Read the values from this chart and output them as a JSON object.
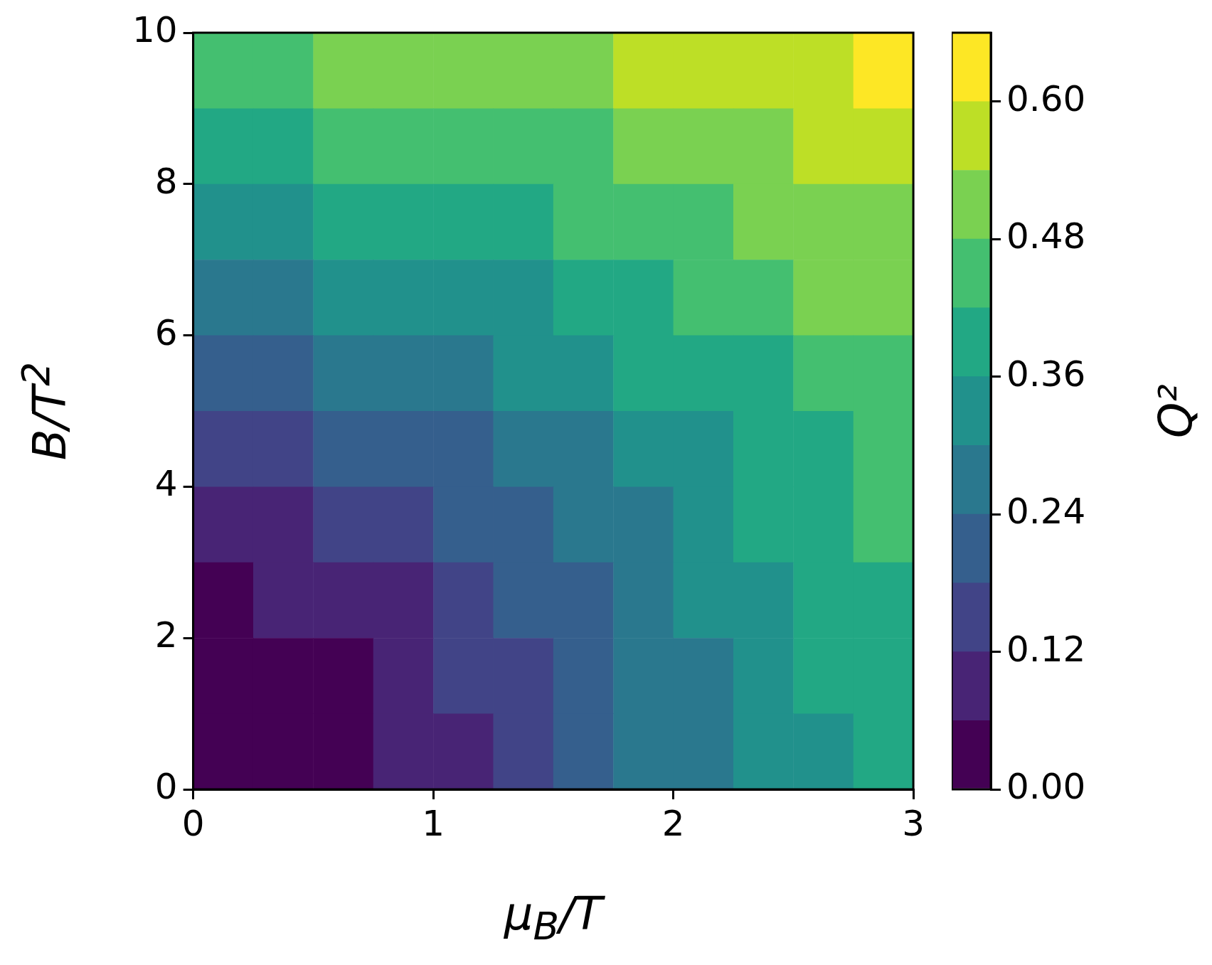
{
  "chart_data": {
    "type": "heatmap",
    "xlabel": "μ$_{B}$/T",
    "ylabel": "B/T$^{2}$",
    "clabel": "Q²",
    "xlim": [
      0,
      3
    ],
    "xticks": [
      0,
      1,
      2,
      3
    ],
    "ylim": [
      0,
      10
    ],
    "yticks": [
      0,
      2,
      4,
      6,
      8,
      10
    ],
    "clim": [
      0,
      0.66
    ],
    "cticks": [
      {
        "value": 0,
        "label": "0.00"
      },
      {
        "value": 0.12,
        "label": "0.12"
      },
      {
        "value": 0.24,
        "label": "0.24"
      },
      {
        "value": 0.36,
        "label": "0.36"
      },
      {
        "value": 0.48,
        "label": "0.48"
      },
      {
        "value": 0.6,
        "label": "0.60"
      }
    ],
    "x": [
      0.125,
      0.375,
      0.625,
      0.875,
      1.125,
      1.375,
      1.625,
      1.875,
      2.125,
      2.375,
      2.625,
      2.875
    ],
    "y": [
      9.5,
      8.5,
      7.5,
      6.5,
      5.5,
      4.5,
      3.5,
      2.5,
      1.5,
      0.5
    ],
    "cells": [
      [
        0.45,
        0.45,
        0.51,
        0.51,
        0.51,
        0.51,
        0.51,
        0.57,
        0.57,
        0.57,
        0.57,
        0.63
      ],
      [
        0.39,
        0.39,
        0.45,
        0.45,
        0.45,
        0.45,
        0.45,
        0.51,
        0.51,
        0.51,
        0.57,
        0.57
      ],
      [
        0.33,
        0.33,
        0.39,
        0.39,
        0.39,
        0.39,
        0.45,
        0.45,
        0.45,
        0.51,
        0.51,
        0.51
      ],
      [
        0.27,
        0.27,
        0.33,
        0.33,
        0.33,
        0.33,
        0.39,
        0.39,
        0.45,
        0.45,
        0.51,
        0.51
      ],
      [
        0.21,
        0.21,
        0.27,
        0.27,
        0.27,
        0.33,
        0.33,
        0.39,
        0.39,
        0.39,
        0.45,
        0.45
      ],
      [
        0.15,
        0.15,
        0.21,
        0.21,
        0.21,
        0.27,
        0.27,
        0.33,
        0.33,
        0.39,
        0.39,
        0.45
      ],
      [
        0.09,
        0.09,
        0.15,
        0.15,
        0.21,
        0.21,
        0.27,
        0.27,
        0.33,
        0.39,
        0.39,
        0.45
      ],
      [
        0.03,
        0.09,
        0.09,
        0.09,
        0.15,
        0.21,
        0.21,
        0.27,
        0.33,
        0.33,
        0.39,
        0.39
      ],
      [
        0.03,
        0.03,
        0.03,
        0.09,
        0.15,
        0.15,
        0.21,
        0.27,
        0.27,
        0.33,
        0.39,
        0.39
      ],
      [
        0.03,
        0.03,
        0.03,
        0.09,
        0.09,
        0.15,
        0.21,
        0.27,
        0.27,
        0.33,
        0.33,
        0.39
      ]
    ]
  }
}
